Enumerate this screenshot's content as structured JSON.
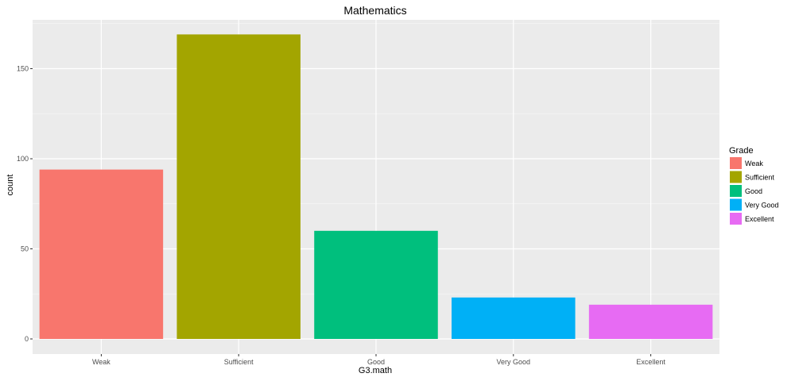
{
  "chart_data": {
    "type": "bar",
    "title": "Mathematics",
    "xlabel": "G3.math",
    "ylabel": "count",
    "categories": [
      "Weak",
      "Sufficient",
      "Good",
      "Very Good",
      "Excellent"
    ],
    "values": [
      94,
      169,
      60,
      23,
      19
    ],
    "colors": [
      "#F8766D",
      "#A3A500",
      "#00BF7D",
      "#00B0F6",
      "#E76BF3"
    ],
    "ylim": [
      0,
      177
    ],
    "yticks": [
      0,
      50,
      100,
      150
    ],
    "grid": true,
    "background": "#EBEBEB",
    "legend": {
      "title": "Grade",
      "placement": "right",
      "entries": [
        "Weak",
        "Sufficient",
        "Good",
        "Very Good",
        "Excellent"
      ]
    }
  }
}
